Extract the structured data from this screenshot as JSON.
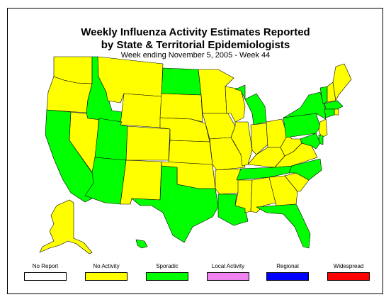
{
  "title_line1": "Weekly Influenza Activity Estimates Reported",
  "title_line2": "by State & Territorial Epidemiologists",
  "subtitle": "Week ending November 5, 2005 - Week 44",
  "colors": {
    "no_report": "#ffffff",
    "no_activity": "#ffff00",
    "sporadic": "#00ff00",
    "local": "#ee82ee",
    "regional": "#0000ff",
    "widespread": "#ff0000"
  },
  "legend": [
    {
      "label": "No Report",
      "color": "#ffffff"
    },
    {
      "label": "No Activity",
      "color": "#ffff00"
    },
    {
      "label": "Sporadic",
      "color": "#00ff00"
    },
    {
      "label": "Local Activity",
      "color": "#ee82ee"
    },
    {
      "label": "Regional",
      "color": "#0000ff"
    },
    {
      "label": "Widespread",
      "color": "#ff0000"
    }
  ],
  "states": [
    {
      "code": "WA",
      "level": "no_activity"
    },
    {
      "code": "OR",
      "level": "no_activity"
    },
    {
      "code": "CA",
      "level": "sporadic"
    },
    {
      "code": "NV",
      "level": "no_activity"
    },
    {
      "code": "ID",
      "level": "sporadic"
    },
    {
      "code": "MT",
      "level": "no_activity"
    },
    {
      "code": "WY",
      "level": "no_activity"
    },
    {
      "code": "UT",
      "level": "sporadic"
    },
    {
      "code": "AZ",
      "level": "sporadic"
    },
    {
      "code": "CO",
      "level": "no_activity"
    },
    {
      "code": "NM",
      "level": "no_activity"
    },
    {
      "code": "ND",
      "level": "sporadic"
    },
    {
      "code": "SD",
      "level": "no_activity"
    },
    {
      "code": "NE",
      "level": "no_activity"
    },
    {
      "code": "KS",
      "level": "no_activity"
    },
    {
      "code": "OK",
      "level": "no_activity"
    },
    {
      "code": "TX",
      "level": "sporadic"
    },
    {
      "code": "MN",
      "level": "no_activity"
    },
    {
      "code": "IA",
      "level": "no_activity"
    },
    {
      "code": "MO",
      "level": "no_activity"
    },
    {
      "code": "AR",
      "level": "no_activity"
    },
    {
      "code": "LA",
      "level": "sporadic"
    },
    {
      "code": "WI",
      "level": "no_activity"
    },
    {
      "code": "IL",
      "level": "no_activity"
    },
    {
      "code": "MI",
      "level": "sporadic"
    },
    {
      "code": "IN",
      "level": "no_activity"
    },
    {
      "code": "OH",
      "level": "no_activity"
    },
    {
      "code": "KY",
      "level": "no_activity"
    },
    {
      "code": "TN",
      "level": "sporadic"
    },
    {
      "code": "MS",
      "level": "no_activity"
    },
    {
      "code": "AL",
      "level": "no_activity"
    },
    {
      "code": "GA",
      "level": "no_activity"
    },
    {
      "code": "FL",
      "level": "sporadic"
    },
    {
      "code": "SC",
      "level": "no_activity"
    },
    {
      "code": "NC",
      "level": "sporadic"
    },
    {
      "code": "VA",
      "level": "no_activity"
    },
    {
      "code": "WV",
      "level": "no_activity"
    },
    {
      "code": "PA",
      "level": "sporadic"
    },
    {
      "code": "NY",
      "level": "sporadic"
    },
    {
      "code": "VT",
      "level": "sporadic"
    },
    {
      "code": "NH",
      "level": "no_activity"
    },
    {
      "code": "ME",
      "level": "no_activity"
    },
    {
      "code": "MA",
      "level": "sporadic"
    },
    {
      "code": "RI",
      "level": "no_activity"
    },
    {
      "code": "CT",
      "level": "sporadic"
    },
    {
      "code": "NJ",
      "level": "no_activity"
    },
    {
      "code": "DE",
      "level": "sporadic"
    },
    {
      "code": "MD",
      "level": "sporadic"
    },
    {
      "code": "AK",
      "level": "no_activity"
    },
    {
      "code": "HI",
      "level": "sporadic"
    }
  ]
}
